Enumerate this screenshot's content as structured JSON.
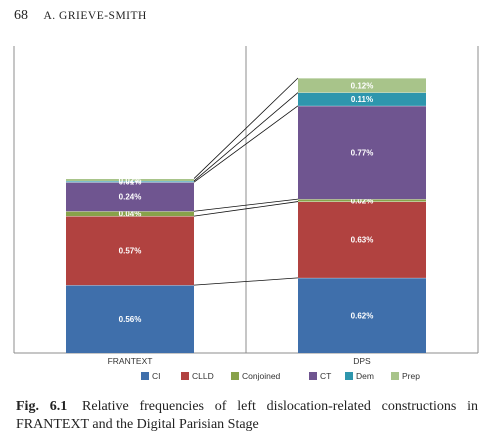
{
  "header": {
    "page_number": "68",
    "author": "A. GRIEVE-SMITH"
  },
  "caption": {
    "figure_label": "Fig. 6.1",
    "text": "Relative frequencies of left dislocation-related constructions in FRANTEXT and the Digital Parisian Stage"
  },
  "chart_data": {
    "type": "bar",
    "stacked": true,
    "categories": [
      "FRANTEXT",
      "DPS"
    ],
    "series": [
      {
        "name": "CI",
        "color": "#3f6fab",
        "values": [
          0.56,
          0.62
        ],
        "labels": [
          "0.56%",
          "0.62%"
        ]
      },
      {
        "name": "CLLD",
        "color": "#b14240",
        "values": [
          0.57,
          0.63
        ],
        "labels": [
          "0.57%",
          "0.63%"
        ]
      },
      {
        "name": "Conjoined",
        "color": "#88a24a",
        "values": [
          0.04,
          0.02
        ],
        "labels": [
          "0.04%",
          "0.02%"
        ]
      },
      {
        "name": "CT",
        "color": "#6f5590",
        "values": [
          0.24,
          0.77
        ],
        "labels": [
          "0.24%",
          "0.77%"
        ]
      },
      {
        "name": "Dem",
        "color": "#2e96ad",
        "values": [
          0.01,
          0.11
        ],
        "labels": [
          "0.01%",
          "0.11%"
        ]
      },
      {
        "name": "Prep",
        "color": "#a8c48a",
        "values": [
          0.02,
          0.12
        ],
        "labels": [
          "0.02%",
          "0.12%"
        ]
      }
    ],
    "legend_position": "bottom",
    "connector_lines": true,
    "category_divider": true
  }
}
